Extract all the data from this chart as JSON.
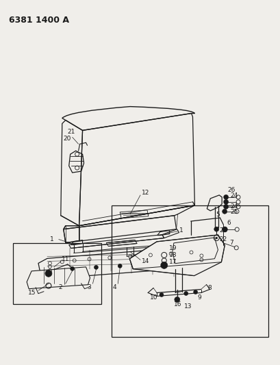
{
  "title": "6381 1400 A",
  "bg_color": "#f0eeea",
  "line_color": "#1a1a1a",
  "fig_width": 4.1,
  "fig_height": 5.33,
  "dpi": 100,
  "title_fontsize": 9,
  "title_fontweight": "bold"
}
